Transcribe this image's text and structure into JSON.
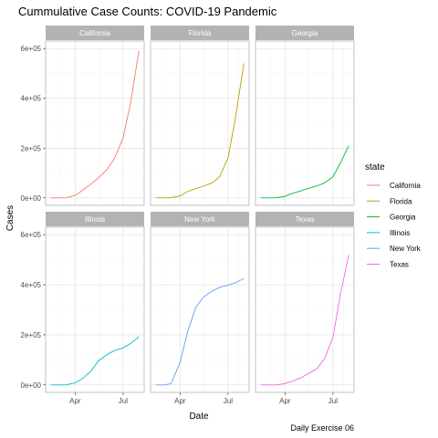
{
  "chart_data": {
    "type": "line",
    "title": "Cummulative Case Counts: COVID-19 Pandemic",
    "xlabel": "Date",
    "ylabel": "Cases",
    "caption": "Daily Exercise 06",
    "x_tick_labels": [
      "Apr",
      "Jul"
    ],
    "y_tick_labels": [
      "0e+00",
      "2e+05",
      "4e+05",
      "6e+05"
    ],
    "y_ticks": [
      0,
      200000,
      400000,
      600000
    ],
    "xlim": [
      "2020-02-05",
      "2020-08-10"
    ],
    "ylim": [
      -30000,
      630000
    ],
    "grid": true,
    "legend": {
      "title": "state",
      "position": "right"
    },
    "colors": {
      "California": "#F8766D",
      "Florida": "#B79F00",
      "Georgia": "#00BA38",
      "Illinois": "#00BFC4",
      "New York": "#619CFF",
      "Texas": "#F564E3"
    },
    "x": [
      "2020-02-15",
      "2020-03-01",
      "2020-03-15",
      "2020-04-01",
      "2020-04-15",
      "2020-05-01",
      "2020-05-15",
      "2020-06-01",
      "2020-06-15",
      "2020-07-01",
      "2020-07-15",
      "2020-07-31"
    ],
    "series": [
      {
        "name": "California",
        "values": [
          0,
          0,
          500,
          10000,
          30000,
          55000,
          80000,
          115000,
          160000,
          240000,
          380000,
          590000
        ]
      },
      {
        "name": "Florida",
        "values": [
          0,
          0,
          1000,
          8000,
          25000,
          37000,
          47000,
          60000,
          85000,
          160000,
          320000,
          540000
        ]
      },
      {
        "name": "Georgia",
        "values": [
          0,
          0,
          500,
          6000,
          18000,
          28000,
          38000,
          48000,
          60000,
          85000,
          140000,
          210000
        ]
      },
      {
        "name": "Illinois",
        "values": [
          0,
          0,
          500,
          8000,
          25000,
          55000,
          95000,
          122000,
          137000,
          148000,
          165000,
          192000
        ]
      },
      {
        "name": "New York",
        "values": [
          0,
          0,
          5000,
          90000,
          210000,
          310000,
          350000,
          375000,
          390000,
          398000,
          408000,
          425000
        ]
      },
      {
        "name": "Texas",
        "values": [
          0,
          0,
          500,
          5000,
          15000,
          28000,
          45000,
          65000,
          105000,
          190000,
          360000,
          520000
        ]
      }
    ]
  }
}
